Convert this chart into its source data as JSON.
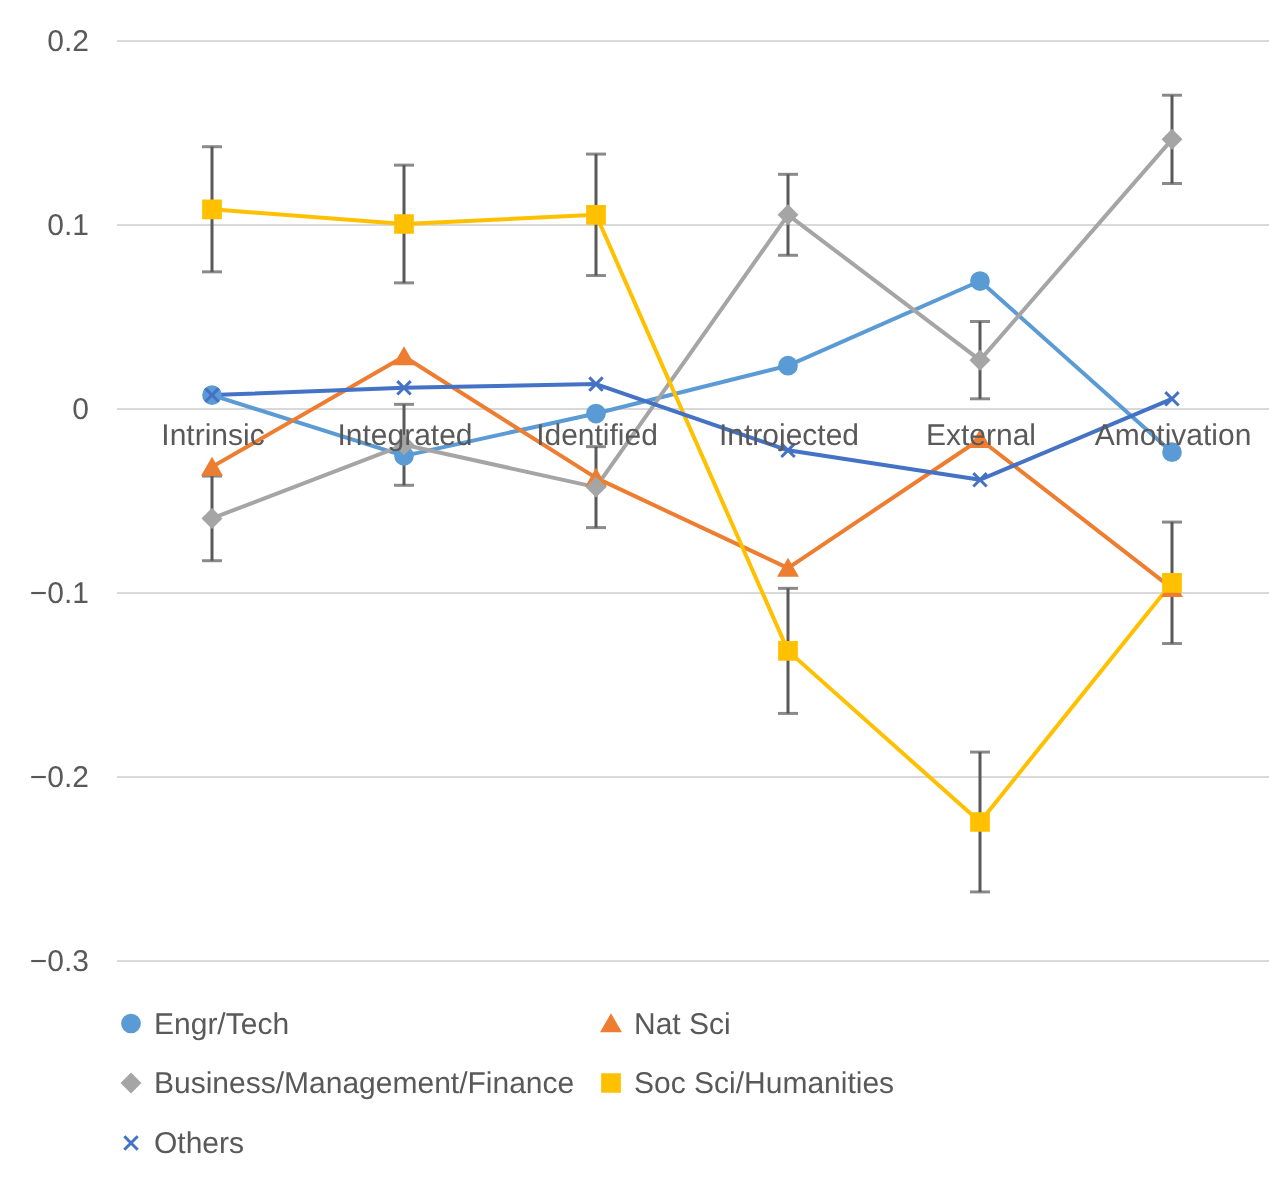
{
  "chart_data": {
    "type": "line",
    "categories": [
      "Intrinsic",
      "Integrated",
      "Identified",
      "Introjected",
      "External",
      "Amotivation"
    ],
    "series": [
      {
        "name": "Engr/Tech",
        "color": "#5b9bd5",
        "marker": "circle",
        "values": [
          0.007,
          -0.026,
          -0.003,
          0.023,
          0.069,
          -0.024
        ]
      },
      {
        "name": "Nat Sci",
        "color": "#ed7d31",
        "marker": "triangle",
        "values": [
          -0.032,
          0.028,
          -0.038,
          -0.087,
          -0.017,
          -0.098
        ]
      },
      {
        "name": "Business/Management/Finance",
        "color": "#a5a5a5",
        "marker": "diamond",
        "values": [
          -0.06,
          -0.02,
          -0.043,
          0.105,
          0.026,
          0.146
        ],
        "errors": [
          0.023,
          0.022,
          0.022,
          0.022,
          0.021,
          0.024
        ]
      },
      {
        "name": "Soc Sci/Humanities",
        "color": "#ffc000",
        "marker": "square",
        "values": [
          0.108,
          0.1,
          0.105,
          -0.132,
          -0.225,
          -0.095
        ],
        "errors": [
          0.034,
          0.032,
          0.033,
          0.034,
          0.038,
          0.033
        ]
      },
      {
        "name": "Others",
        "color": "#4472c4",
        "marker": "cross",
        "values": [
          0.007,
          0.011,
          0.013,
          -0.023,
          -0.039,
          0.005
        ]
      }
    ],
    "ylim": [
      -0.3,
      0.2
    ],
    "yticks": [
      -0.3,
      -0.2,
      -0.1,
      0,
      0.1,
      0.2
    ],
    "grid": "y",
    "legend": "bottom"
  }
}
